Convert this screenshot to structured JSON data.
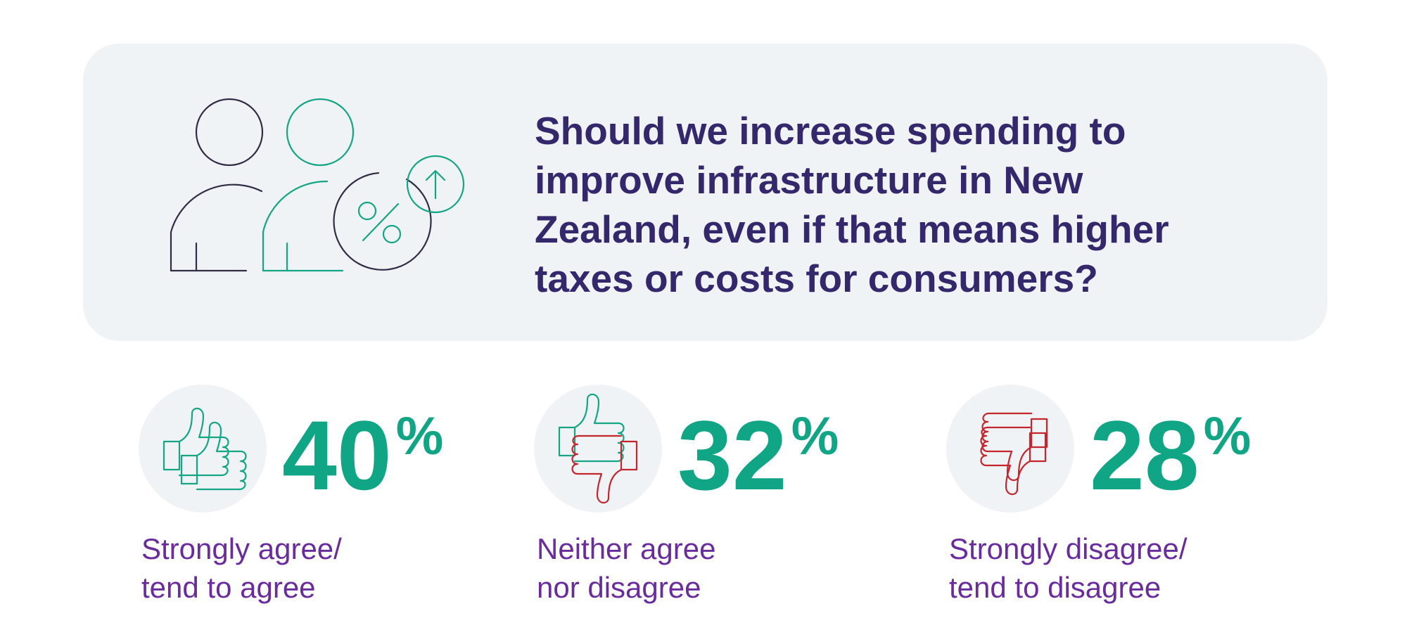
{
  "question": {
    "lines": [
      "Should we increase spending to",
      "improve infrastructure in New",
      "Zealand, even if that means higher",
      "taxes or costs for consumers?"
    ]
  },
  "stats": [
    {
      "value": 40,
      "unit": "%",
      "label_lines": [
        "Strongly agree/",
        "tend to agree"
      ]
    },
    {
      "value": 32,
      "unit": "%",
      "label_lines": [
        "Neither agree",
        "nor disagree"
      ]
    },
    {
      "value": 28,
      "unit": "%",
      "label_lines": [
        "Strongly disagree/",
        "tend to disagree"
      ]
    }
  ]
}
